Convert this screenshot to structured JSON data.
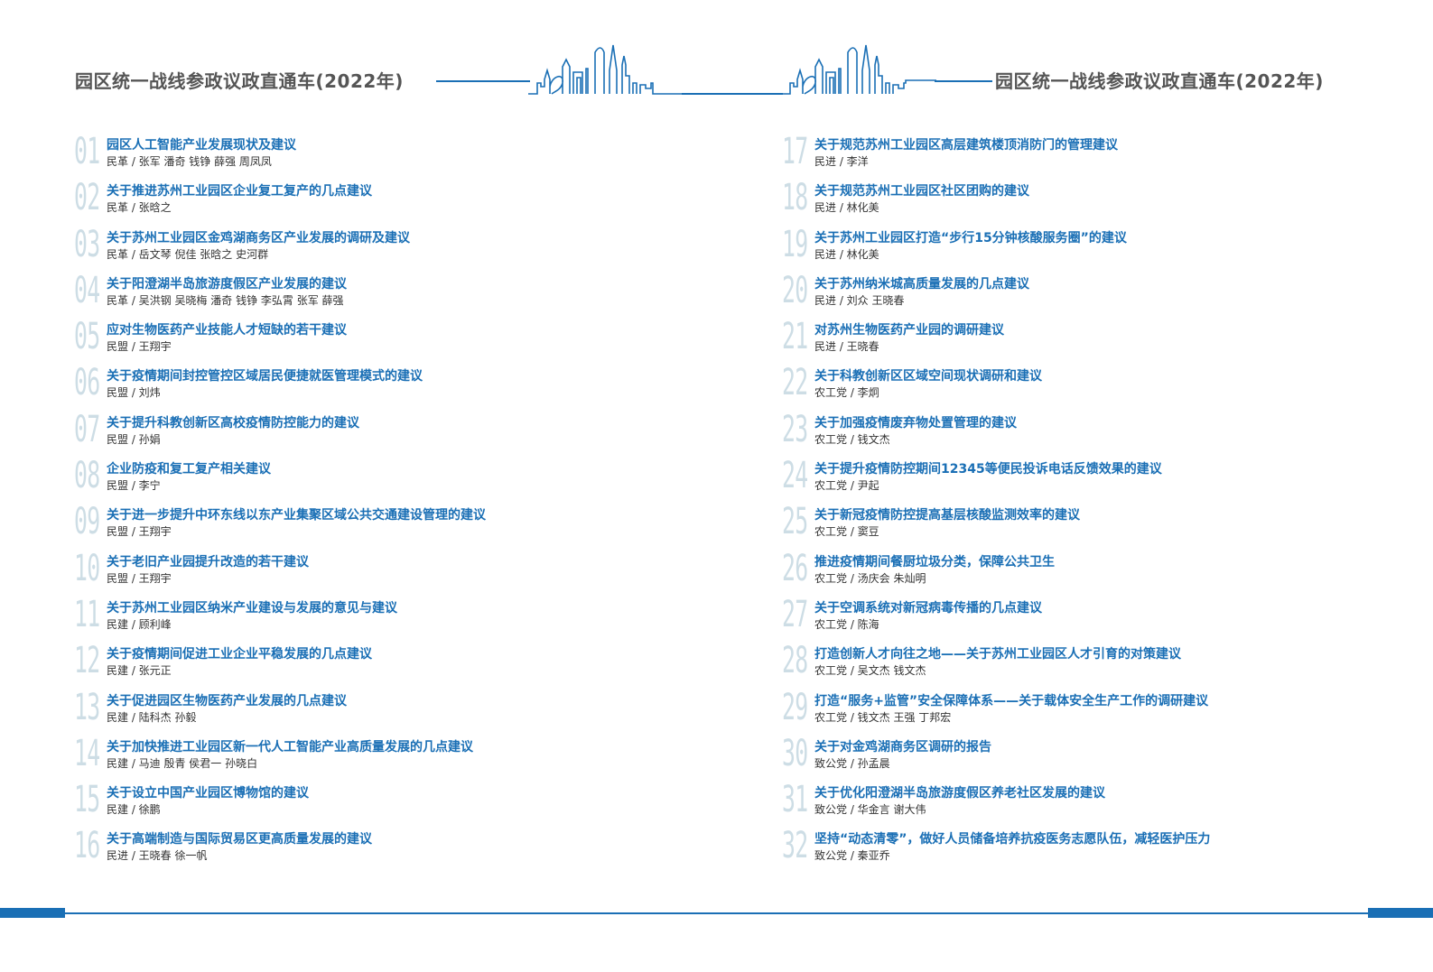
{
  "header": {
    "left_title": "园区统一战线参政议政直通车(2022年)",
    "right_title": "园区统一战线参政议政直通车(2022年)",
    "accent_color": "#1a6fb5"
  },
  "left_items": [
    {
      "num": "01",
      "title": "园区人工智能产业发展现状及建议",
      "authors": "民革 / 张军  潘奇  钱铮  薛强  周凤凤"
    },
    {
      "num": "02",
      "title": "关于推进苏州工业园区企业复工复产的几点建议",
      "authors": "民革 / 张晗之"
    },
    {
      "num": "03",
      "title": "关于苏州工业园区金鸡湖商务区产业发展的调研及建议",
      "authors": "民革 / 岳文琴  倪佳  张晗之  史河群"
    },
    {
      "num": "04",
      "title": "关于阳澄湖半岛旅游度假区产业发展的建议",
      "authors": "民革 / 吴洪钢  吴晓梅  潘奇  钱铮  李弘霄  张军  薛强"
    },
    {
      "num": "05",
      "title": "应对生物医药产业技能人才短缺的若干建议",
      "authors": "民盟 / 王翔宇"
    },
    {
      "num": "06",
      "title": "关于疫情期间封控管控区域居民便捷就医管理模式的建议",
      "authors": "民盟 / 刘炜"
    },
    {
      "num": "07",
      "title": "关于提升科教创新区高校疫情防控能力的建议",
      "authors": "民盟 / 孙娟"
    },
    {
      "num": "08",
      "title": "企业防疫和复工复产相关建议",
      "authors": "民盟 / 李宁"
    },
    {
      "num": "09",
      "title": "关于进一步提升中环东线以东产业集聚区域公共交通建设管理的建议",
      "authors": "民盟 / 王翔宇"
    },
    {
      "num": "10",
      "title": "关于老旧产业园提升改造的若干建议",
      "authors": "民盟 / 王翔宇"
    },
    {
      "num": "11",
      "title": "关于苏州工业园区纳米产业建设与发展的意见与建议",
      "authors": "民建 / 顾利峰"
    },
    {
      "num": "12",
      "title": "关于疫情期间促进工业企业平稳发展的几点建议",
      "authors": "民建 / 张元正"
    },
    {
      "num": "13",
      "title": "关于促进园区生物医药产业发展的几点建议",
      "authors": "民建 / 陆科杰  孙毅"
    },
    {
      "num": "14",
      "title": "关于加快推进工业园区新一代人工智能产业高质量发展的几点建议",
      "authors": "民建 / 马迪  殷青  侯君一  孙晓白"
    },
    {
      "num": "15",
      "title": "关于设立中国产业园区博物馆的建议",
      "authors": "民建 / 徐鹏"
    },
    {
      "num": "16",
      "title": "关于高端制造与国际贸易区更高质量发展的建议",
      "authors": "民进 / 王晓春  徐一帆"
    }
  ],
  "right_items": [
    {
      "num": "17",
      "title": "关于规范苏州工业园区高层建筑楼顶消防门的管理建议",
      "authors": "民进 / 李洋"
    },
    {
      "num": "18",
      "title": "关于规范苏州工业园区社区团购的建议",
      "authors": "民进 / 林化美"
    },
    {
      "num": "19",
      "title": "关于苏州工业园区打造“步行15分钟核酸服务圈”的建议",
      "authors": "民进 / 林化美"
    },
    {
      "num": "20",
      "title": "关于苏州纳米城高质量发展的几点建议",
      "authors": "民进 / 刘众  王晓春"
    },
    {
      "num": "21",
      "title": "对苏州生物医药产业园的调研建议",
      "authors": "民进 / 王晓春"
    },
    {
      "num": "22",
      "title": "关于科教创新区区域空间现状调研和建议",
      "authors": "农工党 / 李炯"
    },
    {
      "num": "23",
      "title": "关于加强疫情废弃物处置管理的建议",
      "authors": "农工党 / 钱文杰"
    },
    {
      "num": "24",
      "title": "关于提升疫情防控期间12345等便民投诉电话反馈效果的建议",
      "authors": "农工党 / 尹起"
    },
    {
      "num": "25",
      "title": "关于新冠疫情防控提高基层核酸监测效率的建议",
      "authors": "农工党 / 窦豆"
    },
    {
      "num": "26",
      "title": "推进疫情期间餐厨垃圾分类，保障公共卫生",
      "authors": "农工党 / 汤庆会  朱灿明"
    },
    {
      "num": "27",
      "title": "关于空调系统对新冠病毒传播的几点建议",
      "authors": "农工党 / 陈海"
    },
    {
      "num": "28",
      "title": "打造创新人才向往之地——关于苏州工业园区人才引育的对策建议",
      "authors": "农工党 / 吴文杰  钱文杰"
    },
    {
      "num": "29",
      "title": "打造“服务+监管”安全保障体系——关于载体安全生产工作的调研建议",
      "authors": "农工党 / 钱文杰  王强  丁邦宏"
    },
    {
      "num": "30",
      "title": "关于对金鸡湖商务区调研的报告",
      "authors": "致公党 / 孙孟晨"
    },
    {
      "num": "31",
      "title": "关于优化阳澄湖半岛旅游度假区养老社区发展的建议",
      "authors": "致公党 / 华金言  谢大伟"
    },
    {
      "num": "32",
      "title": "坚持“动态清零”，做好人员储备培养抗疫医务志愿队伍，减轻医护压力",
      "authors": "致公党 / 秦亚乔"
    }
  ]
}
